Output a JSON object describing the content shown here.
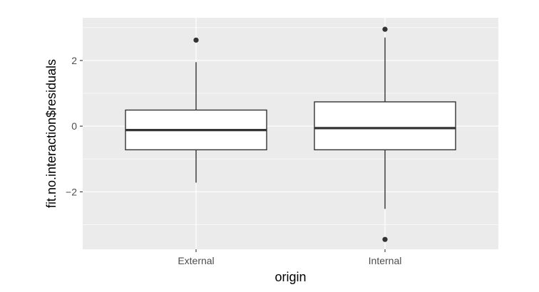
{
  "chart_data": {
    "type": "boxplot",
    "title": "",
    "xlabel": "origin",
    "ylabel": "fit.no.interaction$residuals",
    "categories": [
      "External",
      "Internal"
    ],
    "y_ticks": [
      -2,
      0,
      2
    ],
    "y_tick_labels": [
      "−2",
      "0",
      "2"
    ],
    "ylim": [
      -3.75,
      3.3
    ],
    "boxes": [
      {
        "name": "External",
        "whisker_low": -1.72,
        "q1": -0.72,
        "median": -0.12,
        "q3": 0.49,
        "whisker_high": 1.95,
        "outliers": [
          2.62
        ]
      },
      {
        "name": "Internal",
        "whisker_low": -2.52,
        "q1": -0.72,
        "median": -0.06,
        "q3": 0.74,
        "whisker_high": 2.7,
        "outliers": [
          2.95,
          -3.45
        ]
      }
    ],
    "colors": {
      "panel": "#ebebeb",
      "grid_major": "#ffffff",
      "box_fill": "#ffffff",
      "box_line": "#333333",
      "tick_text": "#4d4d4d",
      "tick_mark": "#333333",
      "title_text": "#000000"
    }
  }
}
